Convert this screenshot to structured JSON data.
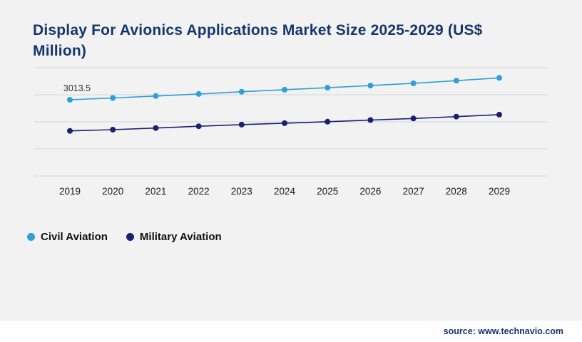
{
  "page": {
    "background_color": "#f2f2f3",
    "footer_background_color": "#ffffff"
  },
  "chart_data": {
    "type": "line",
    "title": "Display For Avionics Applications Market Size 2025-2029 (US$ Million)",
    "title_color": "#16356d",
    "xlabel": "",
    "ylabel": "",
    "x": [
      "2019",
      "2020",
      "2021",
      "2022",
      "2023",
      "2024",
      "2025",
      "2026",
      "2027",
      "2028",
      "2029"
    ],
    "series": [
      {
        "name": "Civil Aviation",
        "color": "#2f9fd6",
        "values": [
          3013.5,
          3049,
          3087,
          3128,
          3172,
          3213,
          3252,
          3295,
          3340,
          3392,
          3448
        ]
      },
      {
        "name": "Military Aviation",
        "color": "#1b2071",
        "values": [
          2395,
          2420,
          2452,
          2487,
          2520,
          2548,
          2578,
          2610,
          2642,
          2678,
          2718
        ]
      }
    ],
    "ylim": [
      1500,
      3650
    ],
    "gridline_count": 5,
    "grid_color": "#d7d7d8",
    "grid_on": true,
    "legend_position": "bottom-left",
    "point_label": {
      "series": "Civil Aviation",
      "x": "2019",
      "text": "3013.5",
      "color": "#333333"
    },
    "axis_label_color": "#1a1a1a"
  },
  "footer": {
    "source_text": "source: www.technavio.com"
  }
}
